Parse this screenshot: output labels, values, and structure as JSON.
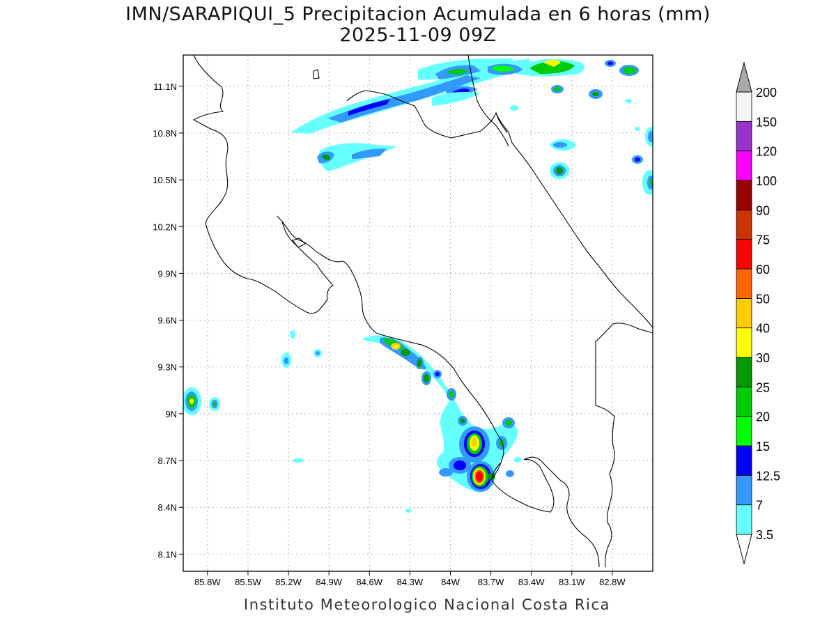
{
  "header": {
    "title": "IMN/SARAPIQUI_5 Precipitacion Acumulada en 6 horas (mm)",
    "subtitle": "2025-11-09 09Z"
  },
  "footer": {
    "credit": "Instituto Meteorologico Nacional Costa Rica"
  },
  "axes": {
    "lon_ticks": [
      "85.8W",
      "85.5W",
      "85.2W",
      "84.9W",
      "84.6W",
      "84.3W",
      "84W",
      "83.7W",
      "83.4W",
      "83.1W",
      "82.8W"
    ],
    "lat_ticks": [
      "11.1N",
      "10.8N",
      "10.5N",
      "10.2N",
      "9.9N",
      "9.6N",
      "9.3N",
      "9N",
      "8.7N",
      "8.4N",
      "8.1N"
    ],
    "lon_values": [
      -85.8,
      -85.5,
      -85.2,
      -84.9,
      -84.6,
      -84.3,
      -84.0,
      -83.7,
      -83.4,
      -83.1,
      -82.8
    ],
    "lat_values": [
      11.1,
      10.8,
      10.5,
      10.2,
      9.9,
      9.6,
      9.3,
      9.0,
      8.7,
      8.4,
      8.1
    ],
    "lon_range": [
      -85.98,
      -82.5
    ],
    "lat_range": [
      7.99,
      11.3
    ],
    "grid": "dotted"
  },
  "colorbar": {
    "labels": [
      "3.5",
      "7",
      "12.5",
      "15",
      "20",
      "25",
      "30",
      "40",
      "50",
      "60",
      "75",
      "90",
      "100",
      "120",
      "150",
      "200"
    ],
    "colors": [
      "#66ffff",
      "#3399ff",
      "#0000ff",
      "#00ff00",
      "#00cc00",
      "#009900",
      "#ffff00",
      "#ffcc00",
      "#ff6600",
      "#ff0000",
      "#cc3300",
      "#990000",
      "#ff00ff",
      "#9933cc",
      "#f5f5f5",
      "#aaaaaa"
    ]
  },
  "precip_cells": [
    {
      "lon": -85.88,
      "lat": 9.09,
      "level": 5
    },
    {
      "lon": -85.7,
      "lat": 9.07,
      "level": 4
    },
    {
      "lon": -85.19,
      "lat": 9.37,
      "level": 1
    },
    {
      "lon": -85.05,
      "lat": 9.39,
      "level": 1
    },
    {
      "lon": -84.45,
      "lat": 9.44,
      "level": 6
    },
    {
      "lon": -84.22,
      "lat": 9.35,
      "level": 5
    },
    {
      "lon": -84.2,
      "lat": 9.24,
      "level": 4
    },
    {
      "lon": -84.0,
      "lat": 9.13,
      "level": 3
    },
    {
      "lon": -83.93,
      "lat": 8.95,
      "level": 3
    },
    {
      "lon": -83.82,
      "lat": 8.83,
      "level": 7
    },
    {
      "lon": -83.77,
      "lat": 8.62,
      "level": 9
    },
    {
      "lon": -83.55,
      "lat": 8.94,
      "level": 4
    },
    {
      "lon": -83.85,
      "lat": 8.67,
      "level": 2
    },
    {
      "lon": -84.9,
      "lat": 10.66,
      "level": 4
    },
    {
      "lon": -84.5,
      "lat": 11.05,
      "level": 2
    },
    {
      "lon": -83.8,
      "lat": 11.25,
      "level": 4
    },
    {
      "lon": -83.4,
      "lat": 11.2,
      "level": 5
    },
    {
      "lon": -83.6,
      "lat": 11.23,
      "level": 4
    },
    {
      "lon": -83.2,
      "lat": 10.56,
      "level": 4
    },
    {
      "lon": -83.2,
      "lat": 10.73,
      "level": 2
    },
    {
      "lon": -82.65,
      "lat": 11.2,
      "level": 4
    },
    {
      "lon": -82.75,
      "lat": 11.25,
      "level": 3
    },
    {
      "lon": -83.05,
      "lat": 11.05,
      "level": 3
    },
    {
      "lon": -82.65,
      "lat": 10.64,
      "level": 2
    },
    {
      "lon": -82.5,
      "lat": 10.47,
      "level": 4
    },
    {
      "lon": -82.5,
      "lat": 10.8,
      "level": 3
    },
    {
      "lon": -83.9,
      "lat": 11.1,
      "level": 2
    }
  ]
}
